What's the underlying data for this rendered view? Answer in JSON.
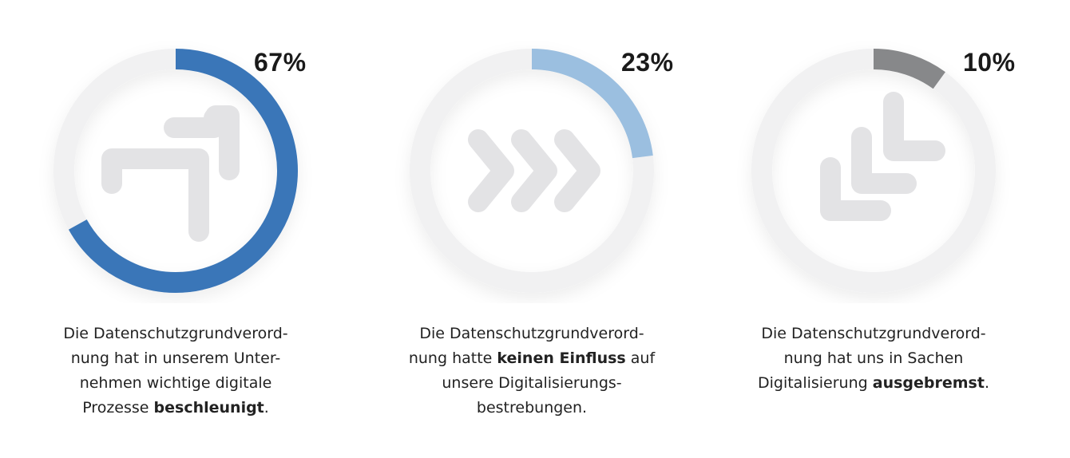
{
  "chart_data": [
    {
      "type": "pie",
      "values": [
        67
      ],
      "value_label": "67%",
      "colors": {
        "arc": "#3a76b8",
        "track": "#f1f1f2",
        "icon": "#e3e3e5"
      },
      "icon": "double-arrow-up-right-icon",
      "caption": [
        {
          "text": "Die Datenschutzgrundverord-"
        },
        {
          "text": "nung hat in unserem Unter-"
        },
        {
          "text": "nehmen wichtige digitale"
        },
        {
          "text": "Prozesse ",
          "bold": "beschleunigt",
          "after": "."
        }
      ]
    },
    {
      "type": "pie",
      "values": [
        23
      ],
      "value_label": "23%",
      "colors": {
        "arc": "#9bbfe0",
        "track": "#f1f1f2",
        "icon": "#e3e3e5"
      },
      "icon": "triple-chevron-right-icon",
      "caption": [
        {
          "text": "Die Datenschutzgrundverord-"
        },
        {
          "text": "nung hatte ",
          "bold": "keinen Einfluss",
          "after": " auf"
        },
        {
          "text": "unsere Digitalisierungs-"
        },
        {
          "text": "bestrebungen."
        }
      ]
    },
    {
      "type": "pie",
      "values": [
        10
      ],
      "value_label": "10%",
      "colors": {
        "arc": "#87888a",
        "track": "#f1f1f2",
        "icon": "#e3e3e5"
      },
      "icon": "double-arrow-down-left-icon",
      "caption": [
        {
          "text": "Die Datenschutzgrundverord-"
        },
        {
          "text": "nung hat uns in Sachen"
        },
        {
          "text": "Digitalisierung ",
          "bold": "ausgebremst",
          "after": "."
        }
      ]
    }
  ]
}
